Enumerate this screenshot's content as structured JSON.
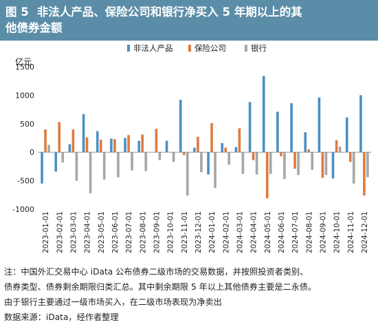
{
  "header": {
    "figure_label": "图 5",
    "title_line1": "非法人产品、保险公司和银行净买入 5 年期以上的其",
    "title_line2": "他债券金额"
  },
  "colors": {
    "banner": "#5b8da8",
    "series": [
      "#4a90c4",
      "#e07a3c",
      "#a6a6a6"
    ]
  },
  "chart_data": {
    "type": "bar",
    "ylabel": "亿元",
    "ylim": [
      -1000,
      1500
    ],
    "yticks": [
      -1000,
      -500,
      0,
      500,
      1000,
      1500
    ],
    "grid": false,
    "legend_position": "top",
    "categories": [
      "2023-01-01",
      "2023-02-01",
      "2023-03-01",
      "2023-04-01",
      "2023-05-01",
      "2023-06-01",
      "2023-07-01",
      "2023-08-01",
      "2023-09-01",
      "2023-10-01",
      "2023-11-01",
      "2023-12-01",
      "2024-01-01",
      "2024-02-01",
      "2024-03-01",
      "2024-04-01",
      "2024-05-01",
      "2024-06-01",
      "2024-07-01",
      "2024-08-01",
      "2024-09-01",
      "2024-10-01",
      "2024-11-01",
      "2024-12-01"
    ],
    "series": [
      {
        "name": "非法人产品",
        "values": [
          -550,
          -340,
          140,
          670,
          370,
          240,
          250,
          200,
          0,
          200,
          920,
          80,
          -390,
          160,
          90,
          880,
          1340,
          710,
          860,
          350,
          960,
          -460,
          610,
          1000
        ]
      },
      {
        "name": "保险公司",
        "values": [
          400,
          530,
          400,
          260,
          220,
          230,
          300,
          310,
          410,
          0,
          -50,
          270,
          510,
          80,
          420,
          -140,
          -810,
          -70,
          -290,
          50,
          -450,
          210,
          -170,
          -760
        ]
      },
      {
        "name": "银行",
        "values": [
          130,
          -180,
          -500,
          -720,
          -480,
          -440,
          -320,
          -330,
          -140,
          -170,
          -760,
          -350,
          -630,
          -220,
          -380,
          -390,
          -380,
          -470,
          -400,
          -310,
          -400,
          100,
          -550,
          -440
        ]
      }
    ]
  },
  "notes": {
    "line1": "注：中国外汇交易中心 iData 公布债券二级市场的交易数据，并按照投资者类别、",
    "line2": "债券类型、债券剩余期限归类汇总。其中剩余期限 5 年以上其他债券主要是二永债。",
    "line3": "由于银行主要通过一级市场买入，在二级市场表现为净卖出",
    "line4": "数据来源：iData，经作者整理"
  }
}
